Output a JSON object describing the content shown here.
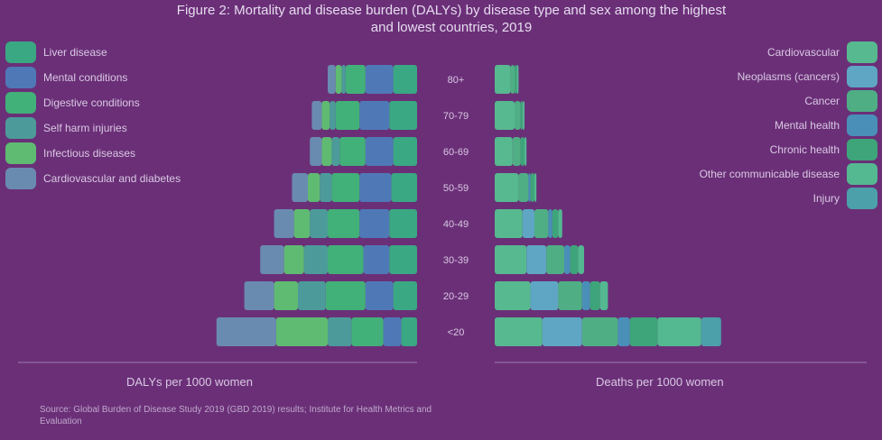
{
  "title": "Figure 2: Mortality and disease burden (DALYs) by disease type and sex among the highest and lowest countries, 2019",
  "chart_data": {
    "type": "bar",
    "orientation": "horizontal-pyramid",
    "categories": [
      "80+",
      "70-79",
      "60-69",
      "50-59",
      "40-49",
      "30-39",
      "20-29",
      "<20"
    ],
    "left_panel": {
      "xlabel": "DALYs per 1000 women",
      "series": [
        {
          "name": "Liver disease",
          "color": "#3aa883",
          "values": [
            12,
            14,
            12,
            13,
            14,
            14,
            12,
            8
          ]
        },
        {
          "name": "Mental conditions",
          "color": "#4f79b6",
          "values": [
            14,
            15,
            14,
            16,
            15,
            13,
            14,
            9
          ]
        },
        {
          "name": "Digestive conditions",
          "color": "#42b079",
          "values": [
            10,
            12,
            13,
            14,
            16,
            18,
            20,
            16
          ]
        },
        {
          "name": "Self harm injuries",
          "color": "#4c9b9a",
          "values": [
            2,
            3,
            4,
            6,
            9,
            12,
            14,
            12
          ]
        },
        {
          "name": "Infectious diseases",
          "color": "#5fbb72",
          "values": [
            3,
            4,
            5,
            6,
            8,
            10,
            12,
            26
          ]
        },
        {
          "name": "Cardiovascular and diabetes",
          "color": "#6a8bb0",
          "values": [
            4,
            5,
            6,
            8,
            10,
            12,
            15,
            30
          ]
        }
      ]
    },
    "right_panel": {
      "xlabel": "Deaths per 1000 women",
      "series": [
        {
          "name": "Cardiovascular",
          "color": "#57b98f",
          "values": [
            8,
            10,
            9,
            12,
            14,
            16,
            18,
            24
          ]
        },
        {
          "name": "Neoplasms (cancers)",
          "color": "#5ea6c4",
          "values": [
            0,
            0,
            0,
            0,
            6,
            10,
            14,
            20
          ]
        },
        {
          "name": "Cancer",
          "color": "#4fae84",
          "values": [
            2,
            3,
            4,
            5,
            7,
            9,
            12,
            18
          ]
        },
        {
          "name": "Mental health",
          "color": "#4a8fb8",
          "values": [
            0,
            0,
            0,
            1,
            2,
            3,
            4,
            6
          ]
        },
        {
          "name": "Chronic health",
          "color": "#3ea47a",
          "values": [
            1,
            1,
            2,
            2,
            3,
            4,
            5,
            14
          ]
        },
        {
          "name": "Other communicable disease",
          "color": "#54b891",
          "values": [
            1,
            1,
            1,
            1,
            2,
            3,
            4,
            22
          ]
        },
        {
          "name": "Injury",
          "color": "#4ca0a9",
          "values": [
            0,
            0,
            0,
            0,
            0,
            0,
            0,
            10
          ]
        }
      ]
    }
  },
  "source": "Source: Global Burden of Disease Study 2019 (GBD 2019) results; Institute for Health Metrics and Evaluation"
}
